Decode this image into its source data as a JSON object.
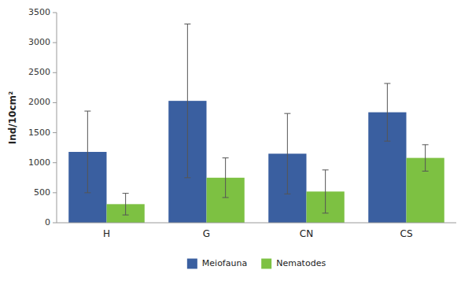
{
  "chart_data": {
    "type": "bar",
    "categories": [
      "H",
      "G",
      "CN",
      "CS"
    ],
    "series": [
      {
        "name": "Meiofauna",
        "color": "#3a5fa0",
        "values": [
          1180,
          2030,
          1150,
          1840
        ],
        "errors": [
          680,
          1280,
          670,
          480
        ]
      },
      {
        "name": "Nematodes",
        "color": "#7dc142",
        "values": [
          310,
          750,
          520,
          1080
        ],
        "errors": [
          180,
          330,
          360,
          220
        ]
      }
    ],
    "ylabel": "Ind/10cm²",
    "ylim": [
      0,
      3500
    ],
    "yticks": [
      0,
      500,
      1000,
      1500,
      2000,
      2500,
      3000,
      3500
    ],
    "grid": false,
    "legend": "bottom"
  }
}
